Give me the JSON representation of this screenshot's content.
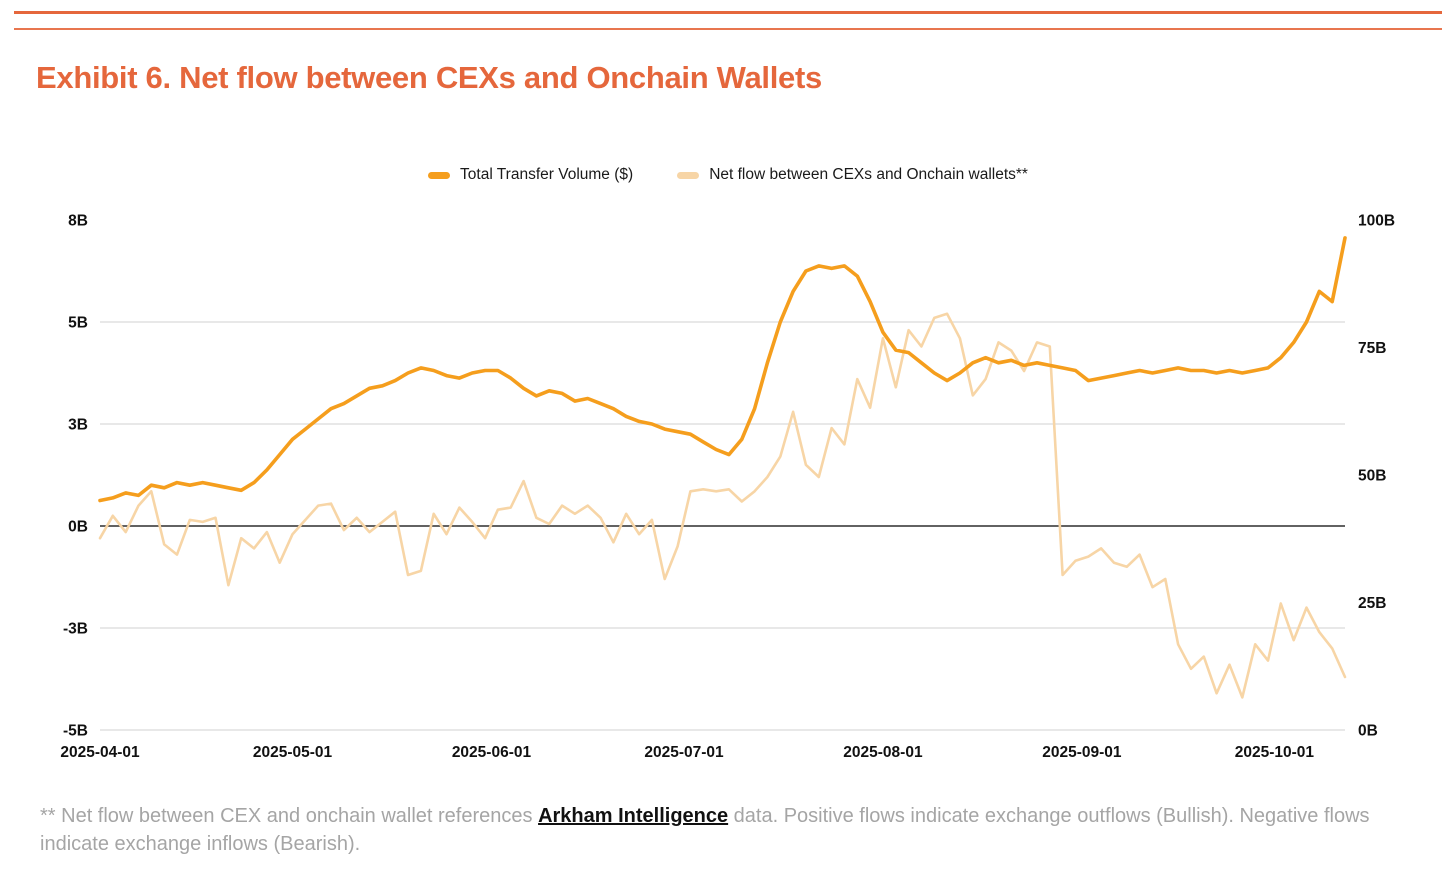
{
  "page": {
    "title": "Exhibit 6. Net flow between CEXs and Onchain Wallets",
    "accent_color": "#E5673C"
  },
  "legend": {
    "items": [
      {
        "label": "Total Transfer Volume ($)",
        "color": "#F59E1D"
      },
      {
        "label": "Net flow between CEXs and Onchain wallets**",
        "color": "#F7D5A6"
      }
    ]
  },
  "footnote": {
    "prefix": "** Net flow between CEX and onchain wallet references ",
    "link_text": "Arkham Intelligence",
    "suffix": " data. Positive flows indicate exchange outflows (Bullish). Negative flows indicate exchange inflows (Bearish)."
  },
  "chart_data": {
    "type": "line",
    "title": "Exhibit 6. Net flow between CEXs and Onchain Wallets",
    "grid": true,
    "x_start": "2025-04-01",
    "x_step_days": 2,
    "x_total_days": 194,
    "x_ticks": [
      {
        "label": "2025-04-01",
        "day": 0
      },
      {
        "label": "2025-05-01",
        "day": 30
      },
      {
        "label": "2025-06-01",
        "day": 61
      },
      {
        "label": "2025-07-01",
        "day": 91
      },
      {
        "label": "2025-08-01",
        "day": 122
      },
      {
        "label": "2025-09-01",
        "day": 153
      },
      {
        "label": "2025-10-01",
        "day": 183
      }
    ],
    "left_axis": {
      "range": [
        -5,
        7.5
      ],
      "ticks": [
        {
          "label": "8B",
          "value": 7.5,
          "grid": false
        },
        {
          "label": "5B",
          "value": 5,
          "grid": true
        },
        {
          "label": "3B",
          "value": 2.5,
          "grid": true
        },
        {
          "label": "0B",
          "value": 0,
          "grid": true
        },
        {
          "label": "-3B",
          "value": -2.5,
          "grid": true
        },
        {
          "label": "-5B",
          "value": -5,
          "grid": true
        }
      ]
    },
    "right_axis": {
      "range": [
        0,
        100
      ],
      "ticks": [
        {
          "label": "100B",
          "value": 100
        },
        {
          "label": "75B",
          "value": 75
        },
        {
          "label": "50B",
          "value": 50
        },
        {
          "label": "25B",
          "value": 25
        },
        {
          "label": "0B",
          "value": 0
        }
      ]
    },
    "series": [
      {
        "name": "Net flow between CEXs and Onchain wallets**",
        "axis": "left",
        "color": "#F7D5A6",
        "stroke_width": 2.6,
        "values": [
          -0.3,
          0.25,
          -0.15,
          0.5,
          0.85,
          -0.45,
          -0.7,
          0.15,
          0.1,
          0.2,
          -1.45,
          -0.3,
          -0.55,
          -0.15,
          -0.9,
          -0.2,
          0.15,
          0.5,
          0.55,
          -0.1,
          0.2,
          -0.15,
          0.1,
          0.35,
          -1.2,
          -1.1,
          0.3,
          -0.2,
          0.45,
          0.1,
          -0.3,
          0.4,
          0.45,
          1.1,
          0.2,
          0.05,
          0.5,
          0.3,
          0.5,
          0.2,
          -0.4,
          0.3,
          -0.2,
          0.15,
          -1.3,
          -0.5,
          0.85,
          0.9,
          0.85,
          0.9,
          0.6,
          0.85,
          1.2,
          1.7,
          2.8,
          1.5,
          1.2,
          2.4,
          2.0,
          3.6,
          2.9,
          4.6,
          3.4,
          4.8,
          4.4,
          5.1,
          5.2,
          4.6,
          3.2,
          3.6,
          4.5,
          4.3,
          3.8,
          4.5,
          4.4,
          -1.2,
          -0.85,
          -0.75,
          -0.55,
          -0.9,
          -1.0,
          -0.7,
          -1.5,
          -1.3,
          -2.9,
          -3.5,
          -3.2,
          -4.1,
          -3.4,
          -4.2,
          -2.9,
          -3.3,
          -1.9,
          -2.8,
          -2.0,
          -2.6,
          -3.0,
          -3.7
        ]
      },
      {
        "name": "Total Transfer Volume ($)",
        "axis": "right",
        "color": "#F59E1D",
        "stroke_width": 3.6,
        "values": [
          45,
          45.5,
          46.5,
          46,
          48,
          47.5,
          48.5,
          48,
          48.5,
          48,
          47.5,
          47,
          48.5,
          51,
          54,
          57,
          59,
          61,
          63,
          64,
          65.5,
          67,
          67.5,
          68.5,
          70,
          71,
          70.5,
          69.5,
          69,
          70,
          70.5,
          70.5,
          69,
          67,
          65.5,
          66.5,
          66,
          64.5,
          65,
          64,
          63,
          61.5,
          60.5,
          60,
          59,
          58.5,
          58,
          56.5,
          55,
          54,
          57,
          63,
          72,
          80,
          86,
          90,
          91,
          90.5,
          91,
          89,
          84,
          78,
          74.5,
          74,
          72,
          70,
          68.5,
          70,
          72,
          73,
          72,
          72.5,
          71.5,
          72,
          71.5,
          71,
          70.5,
          68.5,
          69,
          69.5,
          70,
          70.5,
          70,
          70.5,
          71,
          70.5,
          70.5,
          70,
          70.5,
          70,
          70.5,
          71,
          73,
          76,
          80,
          86,
          84,
          96.5
        ]
      }
    ]
  }
}
